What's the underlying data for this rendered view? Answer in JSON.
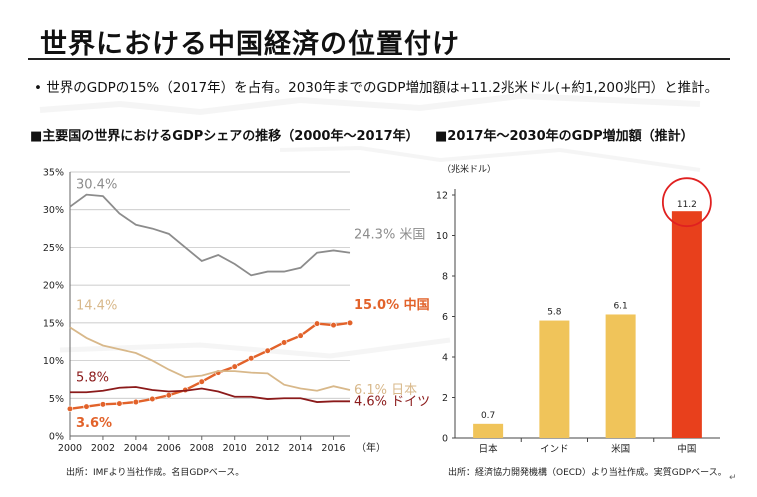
{
  "title": "世界における中国経済の位置付け",
  "summary": "• 世界のGDPの15%（2017年）を占有。2030年までのGDP増加額は+11.2兆米ドル(+約1,200兆円）と推計。",
  "colors": {
    "us": "#8c8c8c",
    "china": "#e2622a",
    "japan": "#d8b88a",
    "germany": "#8b1a1a",
    "bar_light": "#f0c45a",
    "bar_china": "#e8401c",
    "circle": "#e02020"
  },
  "chart_data": [
    {
      "type": "line",
      "title": "■主要国の世界におけるGDPシェアの推移（2000年～2017年）",
      "xlabel": "（年）",
      "ylabel": "",
      "x": [
        2000,
        2001,
        2002,
        2003,
        2004,
        2005,
        2006,
        2007,
        2008,
        2009,
        2010,
        2011,
        2012,
        2013,
        2014,
        2015,
        2016,
        2017
      ],
      "xticks": [
        "2000",
        "2002",
        "2004",
        "2006",
        "2008",
        "2010",
        "2012",
        "2014",
        "2016"
      ],
      "yticks": [
        "0%",
        "5%",
        "10%",
        "15%",
        "20%",
        "25%",
        "30%",
        "35%"
      ],
      "ylim": [
        0,
        35
      ],
      "grid": true,
      "series": [
        {
          "name": "米国",
          "color": "#8c8c8c",
          "marker": false,
          "values": [
            30.4,
            32.0,
            31.8,
            29.5,
            28.0,
            27.5,
            26.8,
            25.0,
            23.2,
            24.0,
            22.8,
            21.3,
            21.8,
            21.8,
            22.3,
            24.3,
            24.6,
            24.3
          ],
          "label": "24.3% 米国",
          "start_label": "30.4%"
        },
        {
          "name": "中国",
          "color": "#e2622a",
          "marker": true,
          "values": [
            3.6,
            3.9,
            4.2,
            4.3,
            4.5,
            4.9,
            5.4,
            6.1,
            7.2,
            8.4,
            9.2,
            10.3,
            11.3,
            12.4,
            13.3,
            14.9,
            14.7,
            15.0
          ],
          "label": "15.0% 中国",
          "start_label": "3.6%"
        },
        {
          "name": "日本",
          "color": "#d8b88a",
          "marker": false,
          "values": [
            14.4,
            13.0,
            12.0,
            11.5,
            11.0,
            10.0,
            8.8,
            7.8,
            8.0,
            8.6,
            8.6,
            8.4,
            8.3,
            6.8,
            6.3,
            6.0,
            6.6,
            6.1
          ],
          "label": "6.1% 日本",
          "start_label": "14.4%"
        },
        {
          "name": "ドイツ",
          "color": "#8b1a1a",
          "marker": false,
          "values": [
            5.8,
            5.8,
            6.0,
            6.4,
            6.5,
            6.1,
            5.9,
            6.0,
            6.3,
            5.9,
            5.2,
            5.2,
            4.9,
            5.0,
            5.0,
            4.5,
            4.6,
            4.6
          ],
          "label": "4.6% ドイツ",
          "start_label": "5.8%"
        }
      ],
      "source": "出所：IMFより当社作成。名目GDPベース。"
    },
    {
      "type": "bar",
      "title": "■2017年～2030年のGDP増加額（推計）",
      "ylabel": "（兆米ドル）",
      "categories": [
        "日本",
        "インド",
        "米国",
        "中国"
      ],
      "values": [
        0.7,
        5.8,
        6.1,
        11.2
      ],
      "value_labels": [
        "0.7",
        "5.8",
        "6.1",
        "11.2"
      ],
      "yticks": [
        "0",
        "2",
        "4",
        "6",
        "8",
        "10",
        "12"
      ],
      "ylim": [
        0,
        12
      ],
      "grid": false,
      "highlight": "中国",
      "source": "出所：経済協力開発機構（OECD）より当社作成。実質GDPベース。"
    }
  ],
  "footer_mark": "↵"
}
